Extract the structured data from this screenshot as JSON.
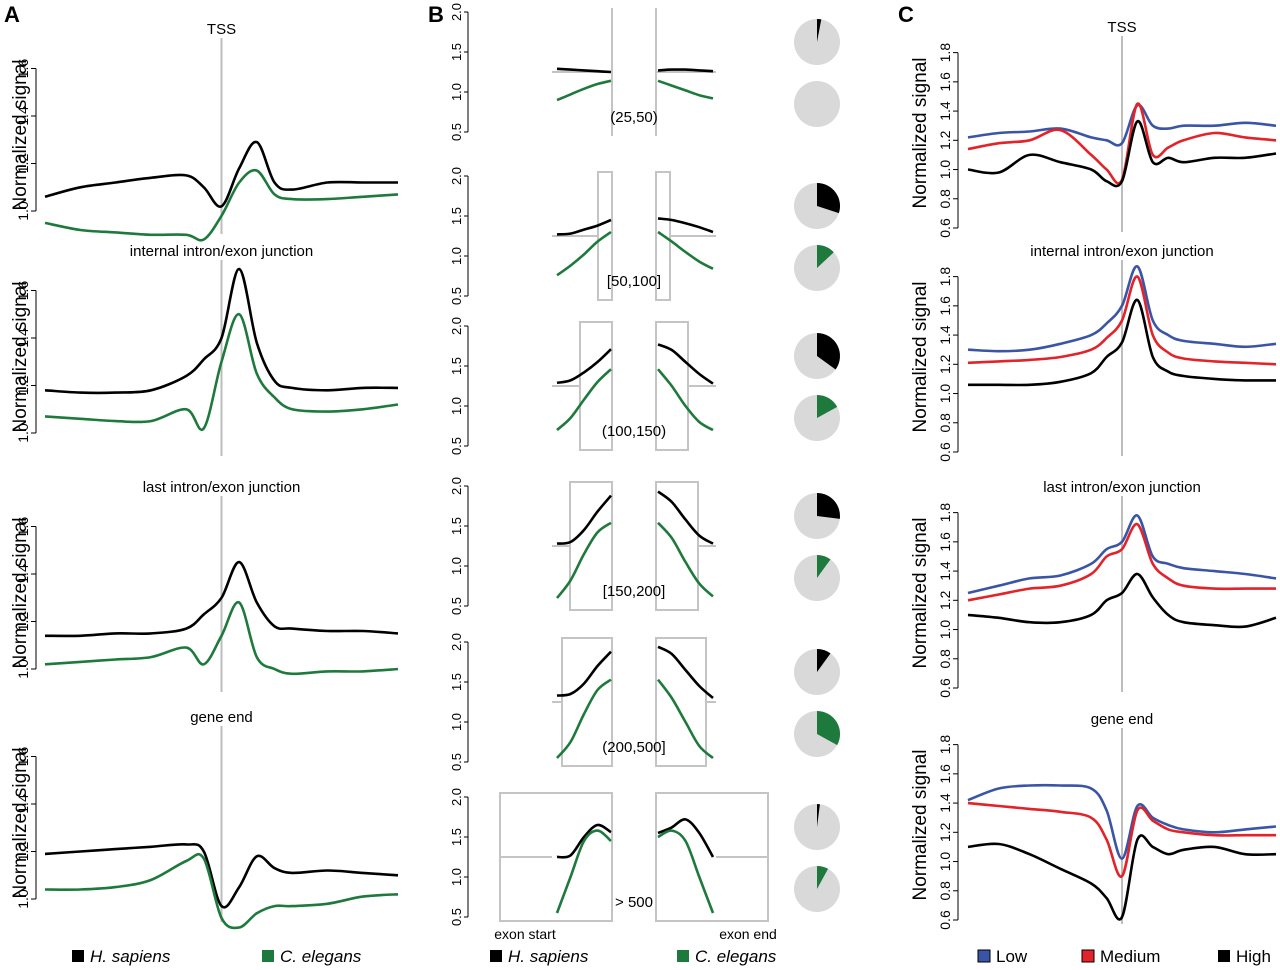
{
  "panel_letters": [
    "A",
    "B",
    "C"
  ],
  "colors": {
    "black": "#000000",
    "green": "#1e7a3c",
    "blue": "#3a55a6",
    "red": "#e2232a",
    "grey": "#c8c8c8",
    "pie_bg": "#d9d9d9"
  },
  "chart_data": [
    {
      "panel": "A",
      "type": "line",
      "ylabel": "Normalized signal",
      "x": [
        -50,
        -40,
        -30,
        -20,
        -10,
        -5,
        0,
        5,
        10,
        15,
        20,
        30,
        40,
        50
      ],
      "subplots": [
        {
          "title": "TSS",
          "yticks": [
            "1.0",
            "1.2",
            "1.4",
            "1.6"
          ],
          "ylim": [
            0.92,
            1.72
          ],
          "series": [
            {
              "name": "H. sapiens",
              "color": "#000000",
              "values": [
                1.06,
                1.1,
                1.12,
                1.14,
                1.15,
                1.1,
                1.02,
                1.18,
                1.29,
                1.12,
                1.09,
                1.12,
                1.12,
                1.12
              ]
            },
            {
              "name": "C. elegans",
              "color": "#1e7a3c",
              "values": [
                0.95,
                0.92,
                0.91,
                0.9,
                0.9,
                0.88,
                0.98,
                1.12,
                1.17,
                1.07,
                1.05,
                1.05,
                1.06,
                1.07
              ]
            }
          ]
        },
        {
          "title": "internal intron/exon junction",
          "yticks": [
            "1.0",
            "1.2",
            "1.4",
            "1.6"
          ],
          "ylim": [
            0.92,
            1.72
          ],
          "series": [
            {
              "name": "H. sapiens",
              "color": "#000000",
              "values": [
                1.18,
                1.17,
                1.17,
                1.18,
                1.24,
                1.31,
                1.4,
                1.69,
                1.38,
                1.22,
                1.19,
                1.18,
                1.19,
                1.19
              ]
            },
            {
              "name": "C. elegans",
              "color": "#1e7a3c",
              "values": [
                1.07,
                1.06,
                1.05,
                1.05,
                1.1,
                1.02,
                1.3,
                1.5,
                1.25,
                1.15,
                1.1,
                1.09,
                1.1,
                1.12
              ]
            }
          ]
        },
        {
          "title": "last intron/exon junction",
          "yticks": [
            "1.0",
            "1.2",
            "1.4",
            "1.6"
          ],
          "ylim": [
            0.92,
            1.72
          ],
          "series": [
            {
              "name": "H. sapiens",
              "color": "#000000",
              "values": [
                1.14,
                1.14,
                1.15,
                1.15,
                1.17,
                1.23,
                1.3,
                1.45,
                1.28,
                1.18,
                1.17,
                1.16,
                1.16,
                1.15
              ]
            },
            {
              "name": "C. elegans",
              "color": "#1e7a3c",
              "values": [
                1.02,
                1.03,
                1.04,
                1.05,
                1.09,
                1.02,
                1.14,
                1.28,
                1.05,
                1.0,
                0.98,
                0.99,
                0.99,
                1.0
              ]
            }
          ]
        },
        {
          "title": "gene end",
          "yticks": [
            "1.0",
            "1.2",
            "1.4",
            "1.6"
          ],
          "ylim": [
            0.92,
            1.72
          ],
          "series": [
            {
              "name": "H. sapiens",
              "color": "#000000",
              "values": [
                1.19,
                1.2,
                1.21,
                1.22,
                1.23,
                1.2,
                0.97,
                1.05,
                1.18,
                1.13,
                1.11,
                1.12,
                1.11,
                1.1
              ]
            },
            {
              "name": "C. elegans",
              "color": "#1e7a3c",
              "values": [
                1.04,
                1.04,
                1.05,
                1.08,
                1.16,
                1.17,
                0.92,
                0.88,
                0.94,
                0.97,
                0.97,
                0.98,
                1.01,
                1.02
              ]
            }
          ]
        }
      ]
    },
    {
      "panel": "B",
      "type": "line",
      "yticks": [
        "0.5",
        "1.0",
        "1.5",
        "2.0"
      ],
      "ylim": [
        0.5,
        2.0
      ],
      "exon_start_label": "exon start",
      "exon_end_label": "exon end",
      "bins": [
        {
          "label": "(25,50)",
          "sapiens_start": [
            1.29,
            1.28,
            1.27,
            1.26,
            1.25
          ],
          "elegans_start": [
            0.9,
            0.97,
            1.04,
            1.1,
            1.14
          ],
          "sapiens_end": [
            1.27,
            1.28,
            1.28,
            1.27,
            1.26
          ],
          "elegans_end": [
            1.14,
            1.08,
            1.02,
            0.96,
            0.92
          ],
          "pie_sapiens": 0.03,
          "pie_elegans": 0.0
        },
        {
          "label": "[50,100]",
          "sapiens_start": [
            1.27,
            1.28,
            1.33,
            1.38,
            1.45
          ],
          "elegans_start": [
            0.76,
            0.88,
            1.02,
            1.18,
            1.3
          ],
          "sapiens_end": [
            1.47,
            1.45,
            1.41,
            1.36,
            1.3
          ],
          "elegans_end": [
            1.3,
            1.18,
            1.05,
            0.93,
            0.84
          ],
          "pie_sapiens": 0.3,
          "pie_elegans": 0.13
        },
        {
          "label": "(100,150)",
          "sapiens_start": [
            1.29,
            1.32,
            1.42,
            1.55,
            1.71
          ],
          "elegans_start": [
            0.7,
            0.85,
            1.08,
            1.3,
            1.46
          ],
          "sapiens_end": [
            1.77,
            1.7,
            1.55,
            1.4,
            1.28
          ],
          "elegans_end": [
            1.46,
            1.25,
            1.0,
            0.8,
            0.7
          ],
          "pie_sapiens": 0.35,
          "pie_elegans": 0.17
        },
        {
          "label": "[150,200]",
          "sapiens_start": [
            1.28,
            1.3,
            1.45,
            1.68,
            1.88
          ],
          "elegans_start": [
            0.6,
            0.82,
            1.15,
            1.42,
            1.54
          ],
          "sapiens_end": [
            1.93,
            1.8,
            1.58,
            1.38,
            1.28
          ],
          "elegans_end": [
            1.54,
            1.35,
            1.05,
            0.78,
            0.62
          ],
          "pie_sapiens": 0.27,
          "pie_elegans": 0.1
        },
        {
          "label": "(200,500]",
          "sapiens_start": [
            1.33,
            1.35,
            1.48,
            1.7,
            1.88
          ],
          "elegans_start": [
            0.55,
            0.75,
            1.1,
            1.4,
            1.53
          ],
          "sapiens_end": [
            1.94,
            1.85,
            1.65,
            1.45,
            1.3
          ],
          "elegans_end": [
            1.53,
            1.3,
            1.0,
            0.7,
            0.55
          ],
          "pie_sapiens": 0.1,
          "pie_elegans": 0.33
        },
        {
          "label": "> 500",
          "sapiens_start": [
            1.25,
            1.27,
            1.5,
            1.65,
            1.56
          ],
          "elegans_start": [
            0.55,
            1.0,
            1.45,
            1.58,
            1.45
          ],
          "sapiens_end": [
            1.55,
            1.62,
            1.72,
            1.55,
            1.25
          ],
          "elegans_end": [
            1.5,
            1.58,
            1.45,
            1.0,
            0.55
          ],
          "pie_sapiens": 0.02,
          "pie_elegans": 0.08
        }
      ]
    },
    {
      "panel": "C",
      "type": "line",
      "ylabel": "Normalized signal",
      "x": [
        -50,
        -40,
        -30,
        -20,
        -10,
        -5,
        0,
        5,
        10,
        15,
        20,
        30,
        40,
        50
      ],
      "subplots": [
        {
          "title": "TSS",
          "yticks": [
            "0.6",
            "0.8",
            "1.0",
            "1.2",
            "1.4",
            "1.6",
            "1.8"
          ],
          "ylim": [
            0.6,
            1.9
          ],
          "series": [
            {
              "name": "Low",
              "color": "#3a55a6",
              "values": [
                1.22,
                1.25,
                1.26,
                1.28,
                1.22,
                1.2,
                1.18,
                1.44,
                1.3,
                1.28,
                1.3,
                1.3,
                1.32,
                1.3
              ]
            },
            {
              "name": "Medium",
              "color": "#e2232a",
              "values": [
                1.14,
                1.18,
                1.2,
                1.27,
                1.1,
                1.0,
                0.93,
                1.45,
                1.1,
                1.15,
                1.2,
                1.25,
                1.22,
                1.2
              ]
            },
            {
              "name": "High",
              "color": "#000000",
              "values": [
                1.0,
                0.98,
                1.1,
                1.05,
                1.0,
                0.92,
                0.92,
                1.33,
                1.05,
                1.08,
                1.05,
                1.08,
                1.08,
                1.11
              ]
            }
          ]
        },
        {
          "title": "internal intron/exon junction",
          "yticks": [
            "0.6",
            "0.8",
            "1.0",
            "1.2",
            "1.4",
            "1.6",
            "1.8"
          ],
          "ylim": [
            0.6,
            1.9
          ],
          "series": [
            {
              "name": "Low",
              "color": "#3a55a6",
              "values": [
                1.3,
                1.29,
                1.3,
                1.34,
                1.4,
                1.48,
                1.6,
                1.87,
                1.5,
                1.4,
                1.36,
                1.34,
                1.32,
                1.34
              ]
            },
            {
              "name": "Medium",
              "color": "#e2232a",
              "values": [
                1.21,
                1.22,
                1.23,
                1.25,
                1.3,
                1.38,
                1.5,
                1.8,
                1.4,
                1.28,
                1.24,
                1.22,
                1.21,
                1.2
              ]
            },
            {
              "name": "High",
              "color": "#000000",
              "values": [
                1.06,
                1.06,
                1.06,
                1.08,
                1.14,
                1.25,
                1.35,
                1.64,
                1.25,
                1.15,
                1.12,
                1.1,
                1.09,
                1.09
              ]
            }
          ]
        },
        {
          "title": "last intron/exon junction",
          "yticks": [
            "0.6",
            "0.8",
            "1.0",
            "1.2",
            "1.4",
            "1.6",
            "1.8"
          ],
          "ylim": [
            0.6,
            1.9
          ],
          "series": [
            {
              "name": "Low",
              "color": "#3a55a6",
              "values": [
                1.25,
                1.3,
                1.35,
                1.37,
                1.45,
                1.55,
                1.6,
                1.78,
                1.5,
                1.45,
                1.42,
                1.4,
                1.38,
                1.35
              ]
            },
            {
              "name": "Medium",
              "color": "#e2232a",
              "values": [
                1.2,
                1.24,
                1.28,
                1.3,
                1.38,
                1.5,
                1.55,
                1.72,
                1.45,
                1.35,
                1.3,
                1.28,
                1.28,
                1.28
              ]
            },
            {
              "name": "High",
              "color": "#000000",
              "values": [
                1.1,
                1.08,
                1.05,
                1.05,
                1.1,
                1.2,
                1.25,
                1.38,
                1.22,
                1.1,
                1.05,
                1.03,
                1.02,
                1.08
              ]
            }
          ]
        },
        {
          "title": "gene end",
          "yticks": [
            "0.6",
            "0.8",
            "1.0",
            "1.2",
            "1.4",
            "1.6",
            "1.8"
          ],
          "ylim": [
            0.6,
            1.9
          ],
          "series": [
            {
              "name": "Low",
              "color": "#3a55a6",
              "values": [
                1.42,
                1.5,
                1.52,
                1.52,
                1.5,
                1.35,
                1.02,
                1.38,
                1.3,
                1.25,
                1.22,
                1.2,
                1.22,
                1.24
              ]
            },
            {
              "name": "Medium",
              "color": "#e2232a",
              "values": [
                1.4,
                1.38,
                1.36,
                1.34,
                1.3,
                1.15,
                0.9,
                1.35,
                1.28,
                1.22,
                1.2,
                1.18,
                1.18,
                1.18
              ]
            },
            {
              "name": "High",
              "color": "#000000",
              "values": [
                1.1,
                1.12,
                1.05,
                0.95,
                0.85,
                0.75,
                0.62,
                1.15,
                1.1,
                1.05,
                1.08,
                1.1,
                1.05,
                1.05
              ]
            }
          ]
        }
      ]
    }
  ],
  "legend_A": [
    {
      "label": "H. sapiens",
      "color": "#000000"
    },
    {
      "label": "C. elegans",
      "color": "#1e7a3c"
    }
  ],
  "legend_B": [
    {
      "label": "H. sapiens",
      "color": "#000000"
    },
    {
      "label": "C. elegans",
      "color": "#1e7a3c"
    }
  ],
  "legend_C": [
    {
      "label": "Low",
      "color": "#3a55a6"
    },
    {
      "label": "Medium",
      "color": "#e2232a"
    },
    {
      "label": "High",
      "color": "#000000"
    }
  ]
}
